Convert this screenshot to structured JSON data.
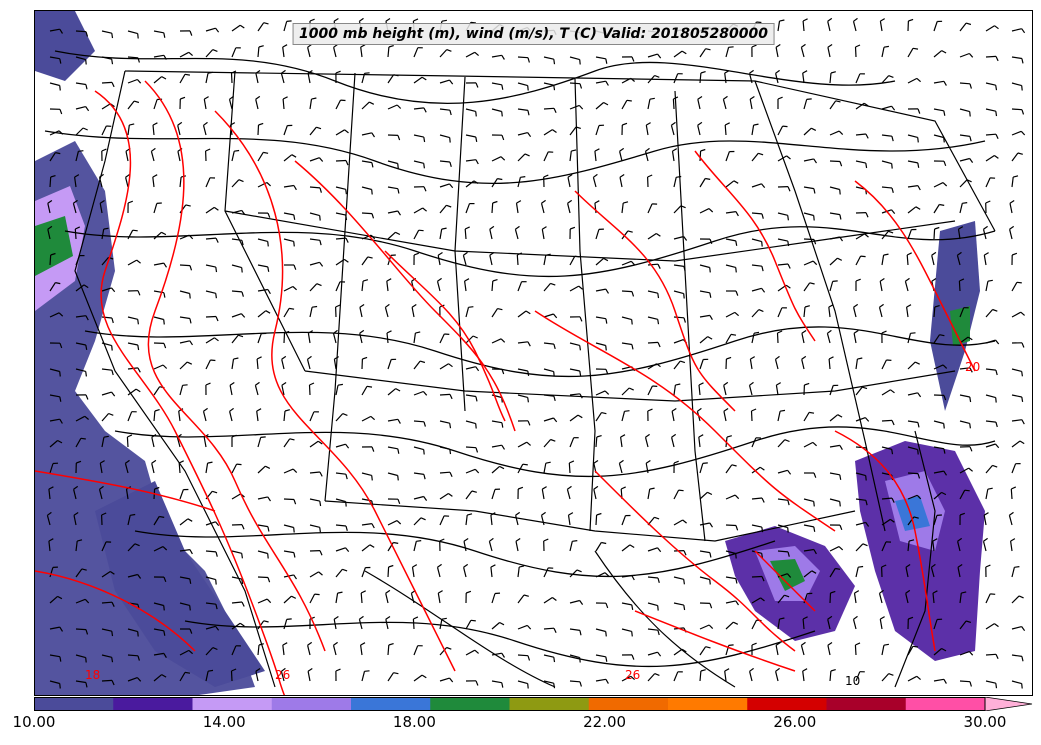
{
  "title": "1000 mb height (m), wind (m/s), T (C) Valid: 201805280000",
  "colorbar": {
    "min": 10,
    "max": 30,
    "colors": [
      "#4b4b9a",
      "#4a1a9e",
      "#c59af5",
      "#9e7ae8",
      "#3a76d8",
      "#1f8a3b",
      "#8e9a12",
      "#f06a00",
      "#ff7a00",
      "#d40000",
      "#a8002a",
      "#ff4fa6",
      "#ffb0d8"
    ],
    "tick_labels": [
      "10.00",
      "14.00",
      "18.00",
      "22.00",
      "26.00",
      "30.00"
    ],
    "tick_values": [
      10,
      14,
      18,
      22,
      26,
      30
    ]
  },
  "contour_labels": [
    "26",
    "26",
    "18",
    "20",
    "10"
  ],
  "colors": {
    "temp_contour": "#ff0000",
    "height_contour": "#000000",
    "boundary": "#000000"
  }
}
